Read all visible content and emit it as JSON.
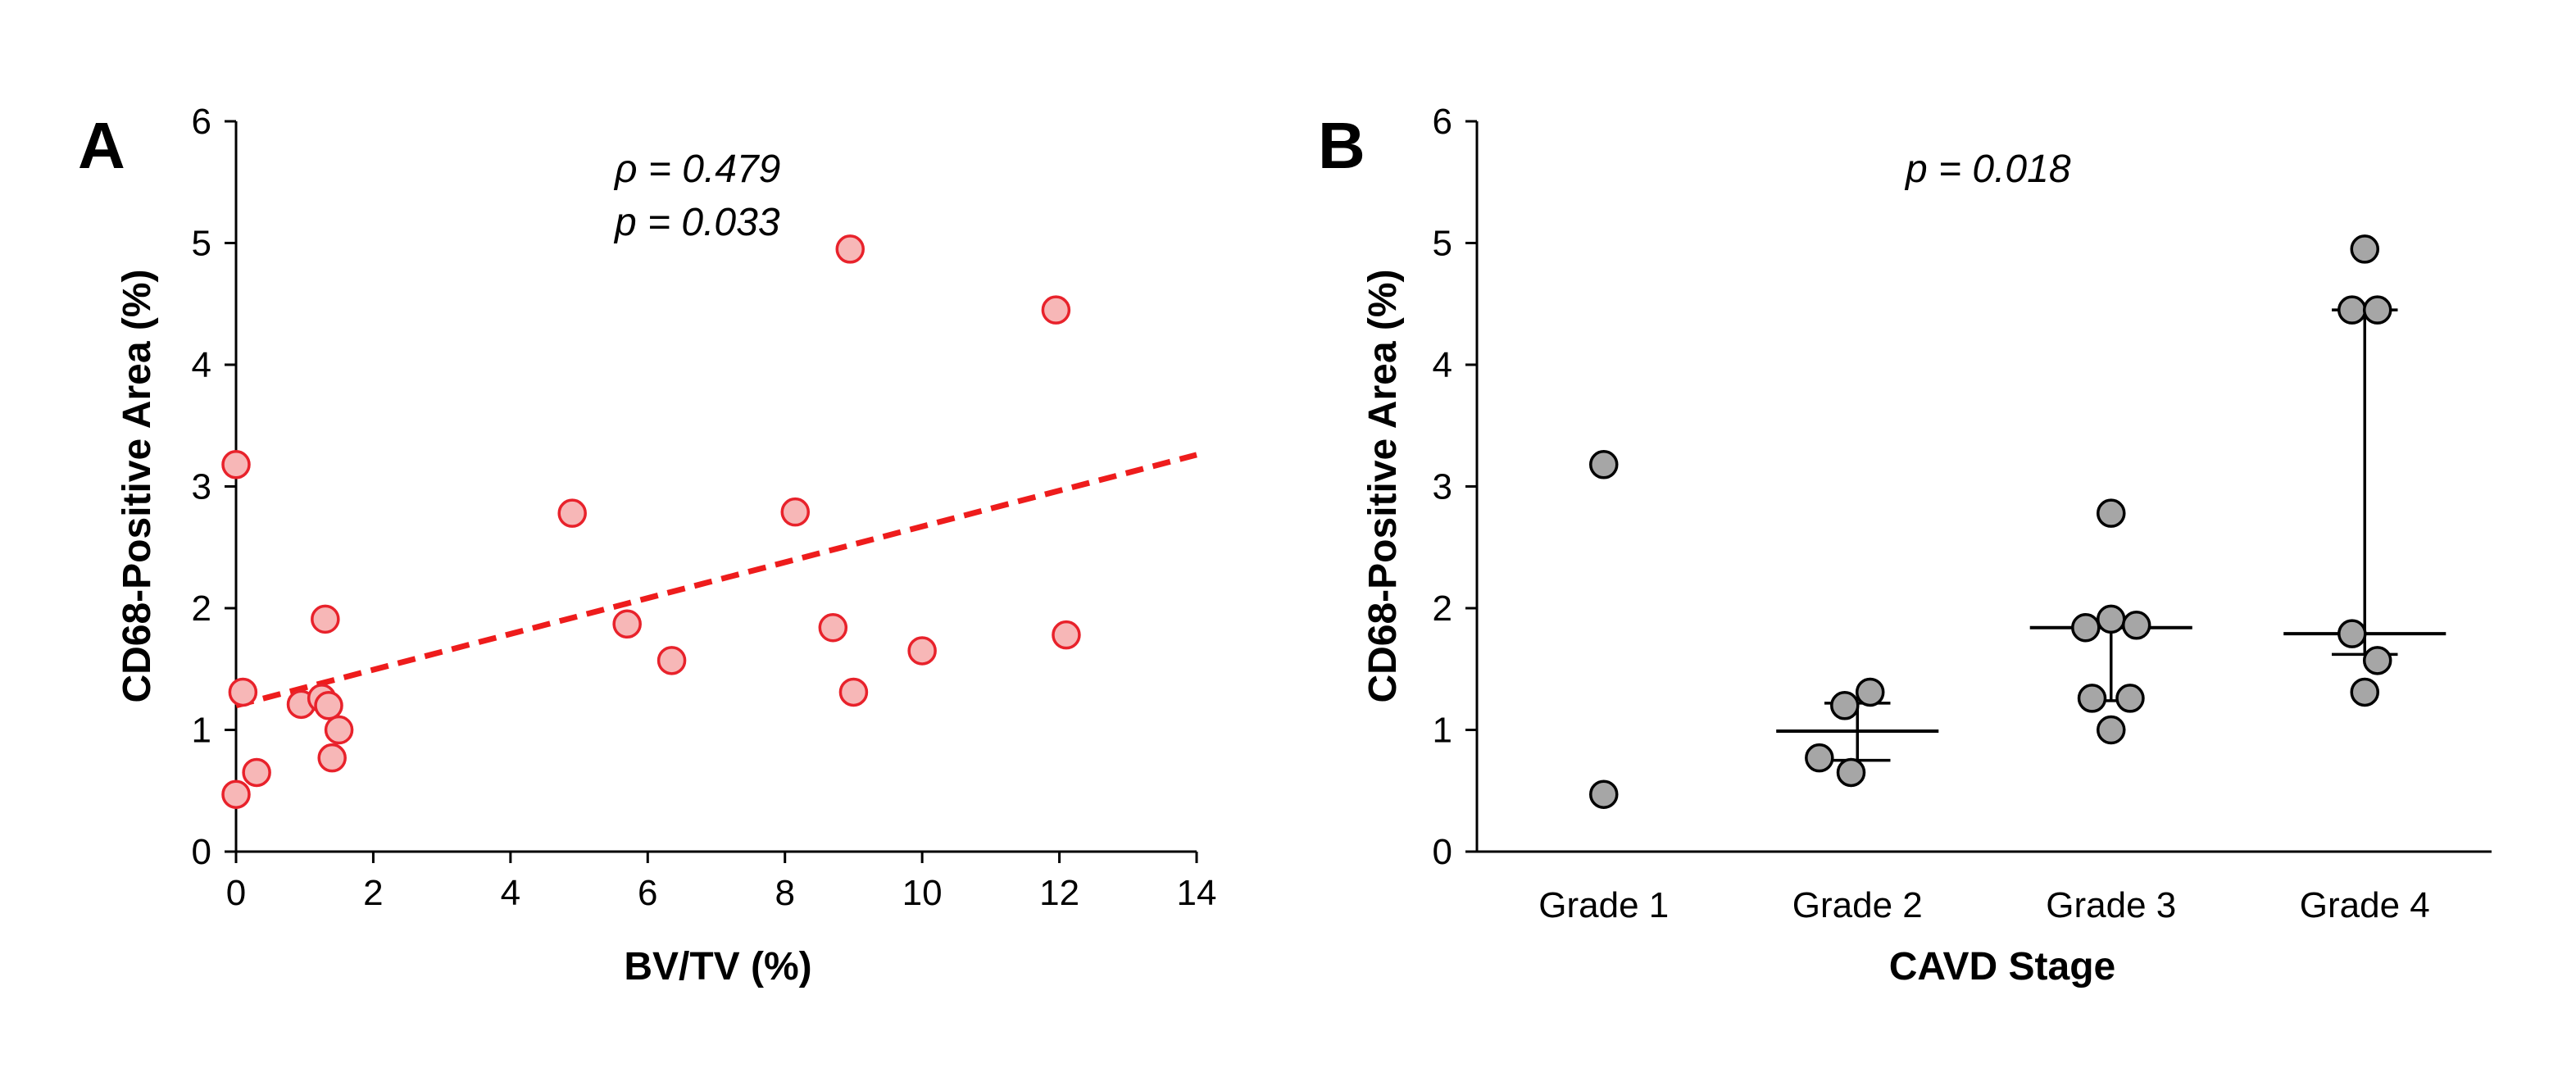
{
  "chart_data": [
    {
      "type": "scatter",
      "panel_label": "A",
      "xlabel": "BV/TV (%)",
      "ylabel": "CD68-Positive Area (%)",
      "xlim": [
        0,
        14
      ],
      "ylim": [
        0,
        6
      ],
      "x_ticks": [
        "0",
        "2",
        "4",
        "6",
        "8",
        "10",
        "12",
        "14"
      ],
      "y_ticks": [
        "0",
        "1",
        "2",
        "3",
        "4",
        "5",
        "6"
      ],
      "annotations": [
        "ρ = 0.479",
        "p = 0.033"
      ],
      "points": [
        {
          "x": 0.0,
          "y": 3.18
        },
        {
          "x": 0.1,
          "y": 1.31
        },
        {
          "x": 0.0,
          "y": 0.47
        },
        {
          "x": 0.3,
          "y": 0.65
        },
        {
          "x": 0.95,
          "y": 1.21
        },
        {
          "x": 1.25,
          "y": 1.26
        },
        {
          "x": 1.3,
          "y": 1.91
        },
        {
          "x": 1.35,
          "y": 1.2
        },
        {
          "x": 1.4,
          "y": 0.77
        },
        {
          "x": 1.5,
          "y": 1.0
        },
        {
          "x": 4.9,
          "y": 2.78
        },
        {
          "x": 5.7,
          "y": 1.87
        },
        {
          "x": 6.35,
          "y": 1.57
        },
        {
          "x": 8.15,
          "y": 2.79
        },
        {
          "x": 8.7,
          "y": 1.84
        },
        {
          "x": 8.95,
          "y": 4.95
        },
        {
          "x": 9.0,
          "y": 1.31
        },
        {
          "x": 10.0,
          "y": 1.65
        },
        {
          "x": 11.95,
          "y": 4.45
        },
        {
          "x": 12.1,
          "y": 1.78
        }
      ],
      "trendline": {
        "style": "dashed",
        "color": "#ee1c1c",
        "x": [
          0,
          14
        ],
        "y": [
          1.2,
          3.26
        ]
      },
      "colors": {
        "marker_fill": "#f7b7b7",
        "marker_edge": "#e8222b"
      }
    },
    {
      "type": "scatter",
      "subtype": "dot-plot-median-iqr",
      "panel_label": "B",
      "xlabel": "CAVD Stage",
      "ylabel": "CD68-Positive Area (%)",
      "ylim": [
        0,
        6
      ],
      "y_ticks": [
        "0",
        "1",
        "2",
        "3",
        "4",
        "5",
        "6"
      ],
      "categories": [
        "Grade 1",
        "Grade 2",
        "Grade 3",
        "Grade 4"
      ],
      "annotations": [
        "p = 0.018"
      ],
      "groups": [
        {
          "name": "Grade 1",
          "points": [
            {
              "offset": 0,
              "y": 3.18
            },
            {
              "offset": 0,
              "y": 0.47
            }
          ],
          "median": null,
          "q1": null,
          "q3": null
        },
        {
          "name": "Grade 2",
          "points": [
            {
              "offset": -0.3,
              "y": 0.77
            },
            {
              "offset": -0.1,
              "y": 1.2
            },
            {
              "offset": 0.1,
              "y": 1.31
            },
            {
              "offset": -0.05,
              "y": 0.65
            }
          ],
          "median": 0.99,
          "q1": 0.75,
          "q3": 1.22
        },
        {
          "name": "Grade 3",
          "points": [
            {
              "offset": 0,
              "y": 2.78
            },
            {
              "offset": -0.2,
              "y": 1.84
            },
            {
              "offset": 0,
              "y": 1.91
            },
            {
              "offset": 0.2,
              "y": 1.86
            },
            {
              "offset": -0.15,
              "y": 1.26
            },
            {
              "offset": 0.15,
              "y": 1.26
            },
            {
              "offset": 0,
              "y": 1.0
            }
          ],
          "median": 1.84,
          "q1": 1.24,
          "q3": 1.84
        },
        {
          "name": "Grade 4",
          "points": [
            {
              "offset": 0,
              "y": 4.95
            },
            {
              "offset": -0.1,
              "y": 4.45
            },
            {
              "offset": 0.1,
              "y": 4.45
            },
            {
              "offset": -0.1,
              "y": 1.79
            },
            {
              "offset": 0.1,
              "y": 1.57
            },
            {
              "offset": 0,
              "y": 1.31
            }
          ],
          "median": 1.79,
          "q1": 1.62,
          "q3": 4.45
        }
      ],
      "colors": {
        "marker_fill": "#a6a6a6",
        "marker_edge": "#000000"
      }
    }
  ]
}
